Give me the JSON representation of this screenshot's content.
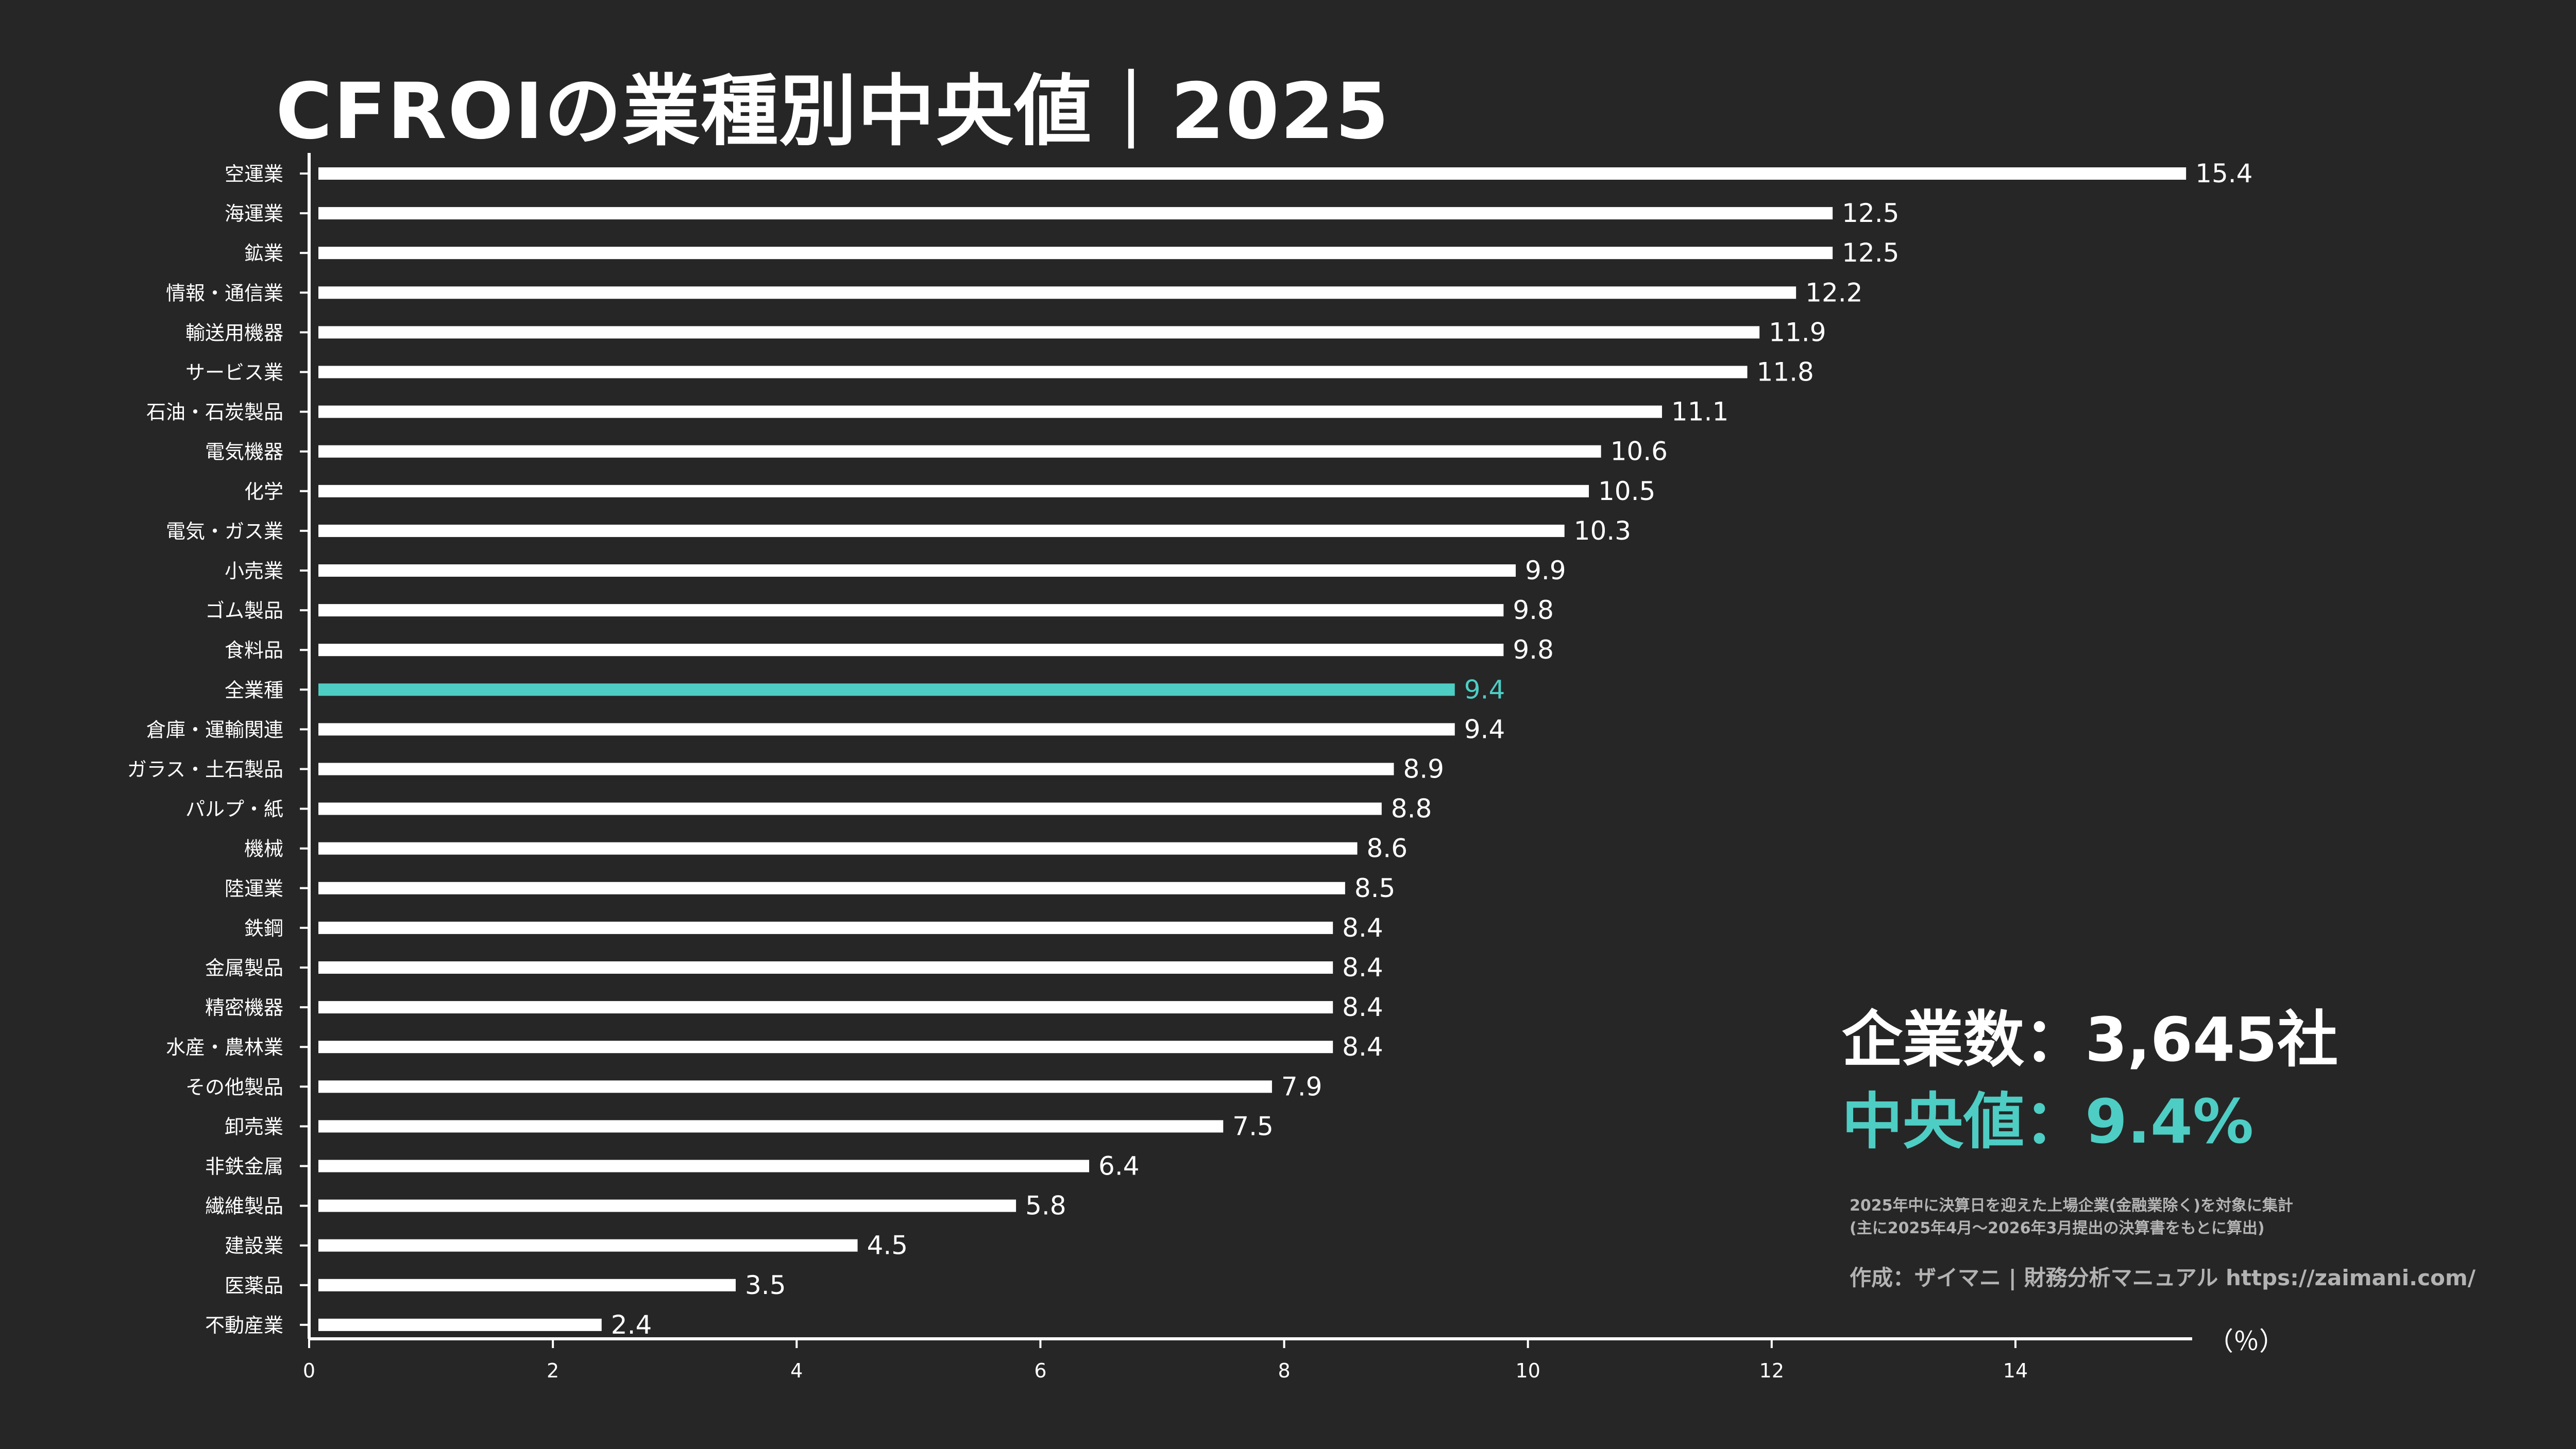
{
  "title": "CFROIの業種別中央値｜2025",
  "summary": {
    "company_count": "企業数：3,645社",
    "median": "中央値：9.4%"
  },
  "note": {
    "line1": "2025年中に決算日を迎えた上場企業(金融業除く)を対象に集計",
    "line2": "(主に2025年4月〜2026年3月提出の決算書をもとに算出)"
  },
  "credit": "作成：ザイマニ | 財務分析マニュアル https://zaimani.com/",
  "unit_label": "（％）",
  "colors": {
    "background": "#262626",
    "bar": "#ffffff",
    "highlight": "#4ecdc4",
    "text": "#ffffff",
    "muted": "#b3b3b3"
  },
  "chart_data": {
    "type": "bar",
    "orientation": "horizontal",
    "categories": [
      "空運業",
      "海運業",
      "鉱業",
      "情報・通信業",
      "輸送用機器",
      "サービス業",
      "石油・石炭製品",
      "電気機器",
      "化学",
      "電気・ガス業",
      "小売業",
      "ゴム製品",
      "食料品",
      "全業種",
      "倉庫・運輸関連",
      "ガラス・土石製品",
      "パルプ・紙",
      "機械",
      "陸運業",
      "鉄鋼",
      "金属製品",
      "精密機器",
      "水産・農林業",
      "その他製品",
      "卸売業",
      "非鉄金属",
      "繊維製品",
      "建設業",
      "医薬品",
      "不動産業"
    ],
    "values": [
      15.4,
      12.5,
      12.5,
      12.2,
      11.9,
      11.8,
      11.1,
      10.6,
      10.5,
      10.3,
      9.9,
      9.8,
      9.8,
      9.4,
      9.4,
      8.9,
      8.8,
      8.6,
      8.5,
      8.4,
      8.4,
      8.4,
      8.4,
      7.9,
      7.5,
      6.4,
      5.8,
      4.5,
      3.5,
      2.4
    ],
    "value_labels": [
      "15.4",
      "12.5",
      "12.5",
      "12.2",
      "11.9",
      "11.8",
      "11.1",
      "10.6",
      "10.5",
      "10.3",
      "9.9",
      "9.8",
      "9.8",
      "9.4",
      "9.4",
      "8.9",
      "8.8",
      "8.6",
      "8.5",
      "8.4",
      "8.4",
      "8.4",
      "8.4",
      "7.9",
      "7.5",
      "6.4",
      "5.8",
      "4.5",
      "3.5",
      "2.4"
    ],
    "highlight_category": "全業種",
    "x_ticks": [
      0,
      2,
      4,
      6,
      8,
      10,
      12,
      14
    ],
    "xlim": [
      0,
      15.45
    ],
    "xlabel": "（％）",
    "ylabel": "",
    "grid": false,
    "legend": "none"
  }
}
